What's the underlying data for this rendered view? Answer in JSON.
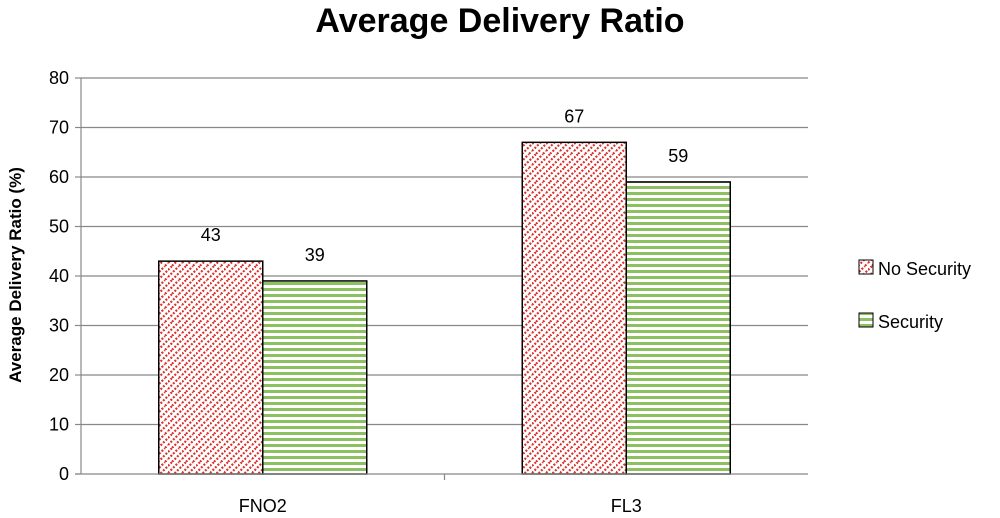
{
  "chart_data": {
    "type": "bar",
    "title": "Average Delivery Ratio",
    "xlabel": "",
    "ylabel": "Average Delivery Ratio (%)",
    "ylim": [
      0,
      80
    ],
    "yticks": [
      0,
      10,
      20,
      30,
      40,
      50,
      60,
      70,
      80
    ],
    "categories": [
      "FNO2",
      "FL3"
    ],
    "series": [
      {
        "name": "No Security",
        "values": [
          43,
          67
        ],
        "data_labels": [
          "43",
          "67"
        ],
        "color": "#d9352f",
        "pattern": "red-zigzag"
      },
      {
        "name": "Security",
        "values": [
          39,
          59
        ],
        "data_labels": [
          "39",
          "59"
        ],
        "color": "#8cc060",
        "pattern": "green-horizontal-stripes"
      }
    ],
    "grid": true,
    "legend_position": "right"
  }
}
